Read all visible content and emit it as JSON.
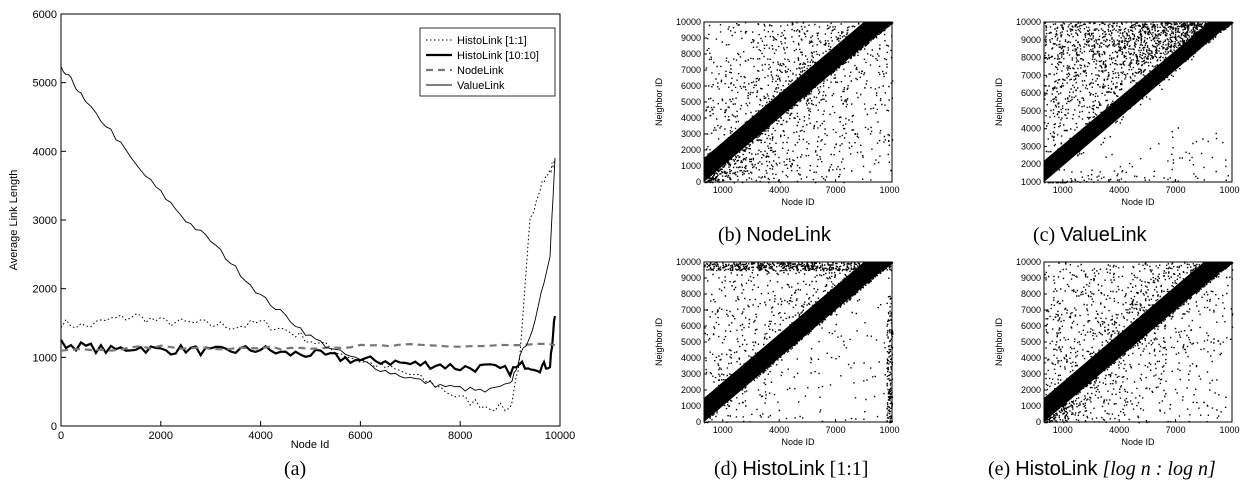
{
  "chart_data": [
    {
      "id": "a",
      "type": "line",
      "caption": "(a)",
      "xlabel": "Node Id",
      "ylabel": "Average Link Length",
      "xlim": [
        0,
        10000
      ],
      "ylim": [
        0,
        6000
      ],
      "xticks": [
        "0",
        "2000",
        "4000",
        "6000",
        "8000",
        "10000"
      ],
      "yticks": [
        "0",
        "1000",
        "2000",
        "3000",
        "4000",
        "5000",
        "6000"
      ],
      "legend_position": "top-right",
      "series": [
        {
          "name": "HistoLink [1:1]",
          "style": "dotted",
          "x": [
            0,
            500,
            1000,
            1500,
            2000,
            2500,
            3000,
            3500,
            4000,
            4500,
            5000,
            5500,
            6000,
            6500,
            7000,
            7500,
            8000,
            8500,
            9000,
            9200,
            9400,
            9600,
            9800,
            9900
          ],
          "y": [
            1500,
            1450,
            1550,
            1600,
            1520,
            1500,
            1480,
            1450,
            1500,
            1400,
            1250,
            1100,
            950,
            850,
            750,
            600,
            400,
            300,
            250,
            1000,
            3000,
            3500,
            3700,
            3900
          ]
        },
        {
          "name": "HistoLink [10:10]",
          "style": "thick",
          "x": [
            0,
            500,
            1000,
            1500,
            2000,
            2500,
            3000,
            3500,
            4000,
            4500,
            5000,
            5500,
            6000,
            6500,
            7000,
            7500,
            8000,
            8500,
            9000,
            9300,
            9600,
            9800,
            9900
          ],
          "y": [
            1200,
            1150,
            1100,
            1150,
            1100,
            1120,
            1080,
            1100,
            1120,
            1050,
            1050,
            1000,
            950,
            950,
            900,
            900,
            850,
            850,
            800,
            900,
            850,
            900,
            1600
          ]
        },
        {
          "name": "NodeLink",
          "style": "dashed",
          "x": [
            0,
            1000,
            2000,
            3000,
            4000,
            5000,
            6000,
            7000,
            8000,
            9000,
            9900
          ],
          "y": [
            1100,
            1120,
            1150,
            1140,
            1130,
            1150,
            1160,
            1170,
            1160,
            1170,
            1180
          ]
        },
        {
          "name": "ValueLink",
          "style": "solid",
          "x": [
            0,
            250,
            500,
            1000,
            1500,
            2000,
            2500,
            3000,
            3500,
            4000,
            4500,
            5000,
            5500,
            6000,
            6500,
            7000,
            7500,
            8000,
            8500,
            9000,
            9200,
            9500,
            9800,
            9900
          ],
          "y": [
            5200,
            5000,
            4700,
            4300,
            3800,
            3400,
            3000,
            2700,
            2300,
            1900,
            1600,
            1300,
            1100,
            950,
            800,
            700,
            600,
            550,
            500,
            600,
            1000,
            1500,
            2500,
            3900
          ]
        }
      ]
    },
    {
      "id": "b",
      "type": "scatter",
      "caption_label": "(b)",
      "caption_name": "NodeLink",
      "xlabel": "Node ID",
      "ylabel": "Neighbor ID",
      "xlim": [
        0,
        10000
      ],
      "ylim": [
        0,
        10000
      ],
      "xticks": [
        "1000",
        "4000",
        "7000",
        "10000"
      ],
      "yticks": [
        "0",
        "1000",
        "2000",
        "3000",
        "4000",
        "5000",
        "6000",
        "7000",
        "8000",
        "9000",
        "10000"
      ],
      "distribution": {
        "band_width": 1500,
        "upper_fraction": 0.65,
        "point_count": 1800
      }
    },
    {
      "id": "c",
      "type": "scatter",
      "caption_label": "(c)",
      "caption_name": "ValueLink",
      "xlabel": "Node ID",
      "ylabel": "Neighbor ID",
      "xlim": [
        0,
        10000
      ],
      "ylim": [
        1000,
        10000
      ],
      "xticks": [
        "1000",
        "4000",
        "7000",
        "10000"
      ],
      "yticks": [
        "1000",
        "2000",
        "3000",
        "4000",
        "5000",
        "6000",
        "7000",
        "8000",
        "9000",
        "10000"
      ],
      "distribution": {
        "band_width": 1200,
        "upper_fraction": 0.95,
        "point_count": 2200
      }
    },
    {
      "id": "d",
      "type": "scatter",
      "caption_label": "(d)",
      "caption_name": "HistoLink",
      "caption_suffix": "[1:1]",
      "xlabel": "Node ID",
      "ylabel": "Neighbor ID",
      "xlim": [
        0,
        10000
      ],
      "ylim": [
        0,
        10000
      ],
      "xticks": [
        "1000",
        "4000",
        "7000",
        "10000"
      ],
      "yticks": [
        "0",
        "1000",
        "2000",
        "3000",
        "4000",
        "5000",
        "6000",
        "7000",
        "8000",
        "9000",
        "10000"
      ],
      "distribution": {
        "band_width": 1500,
        "upper_fraction": 0.8,
        "point_count": 1700
      }
    },
    {
      "id": "e",
      "type": "scatter",
      "caption_label": "(e)",
      "caption_name": "HistoLink",
      "caption_suffix": "[log n : log n]",
      "xlabel": "Node ID",
      "ylabel": "Neighbor ID",
      "xlim": [
        0,
        10000
      ],
      "ylim": [
        0,
        10000
      ],
      "xticks": [
        "1000",
        "4000",
        "7000",
        "10000"
      ],
      "yticks": [
        "0",
        "1000",
        "2000",
        "3000",
        "4000",
        "5000",
        "6000",
        "7000",
        "8000",
        "9000",
        "10000"
      ],
      "distribution": {
        "band_width": 1500,
        "upper_fraction": 0.7,
        "point_count": 1800
      }
    }
  ]
}
